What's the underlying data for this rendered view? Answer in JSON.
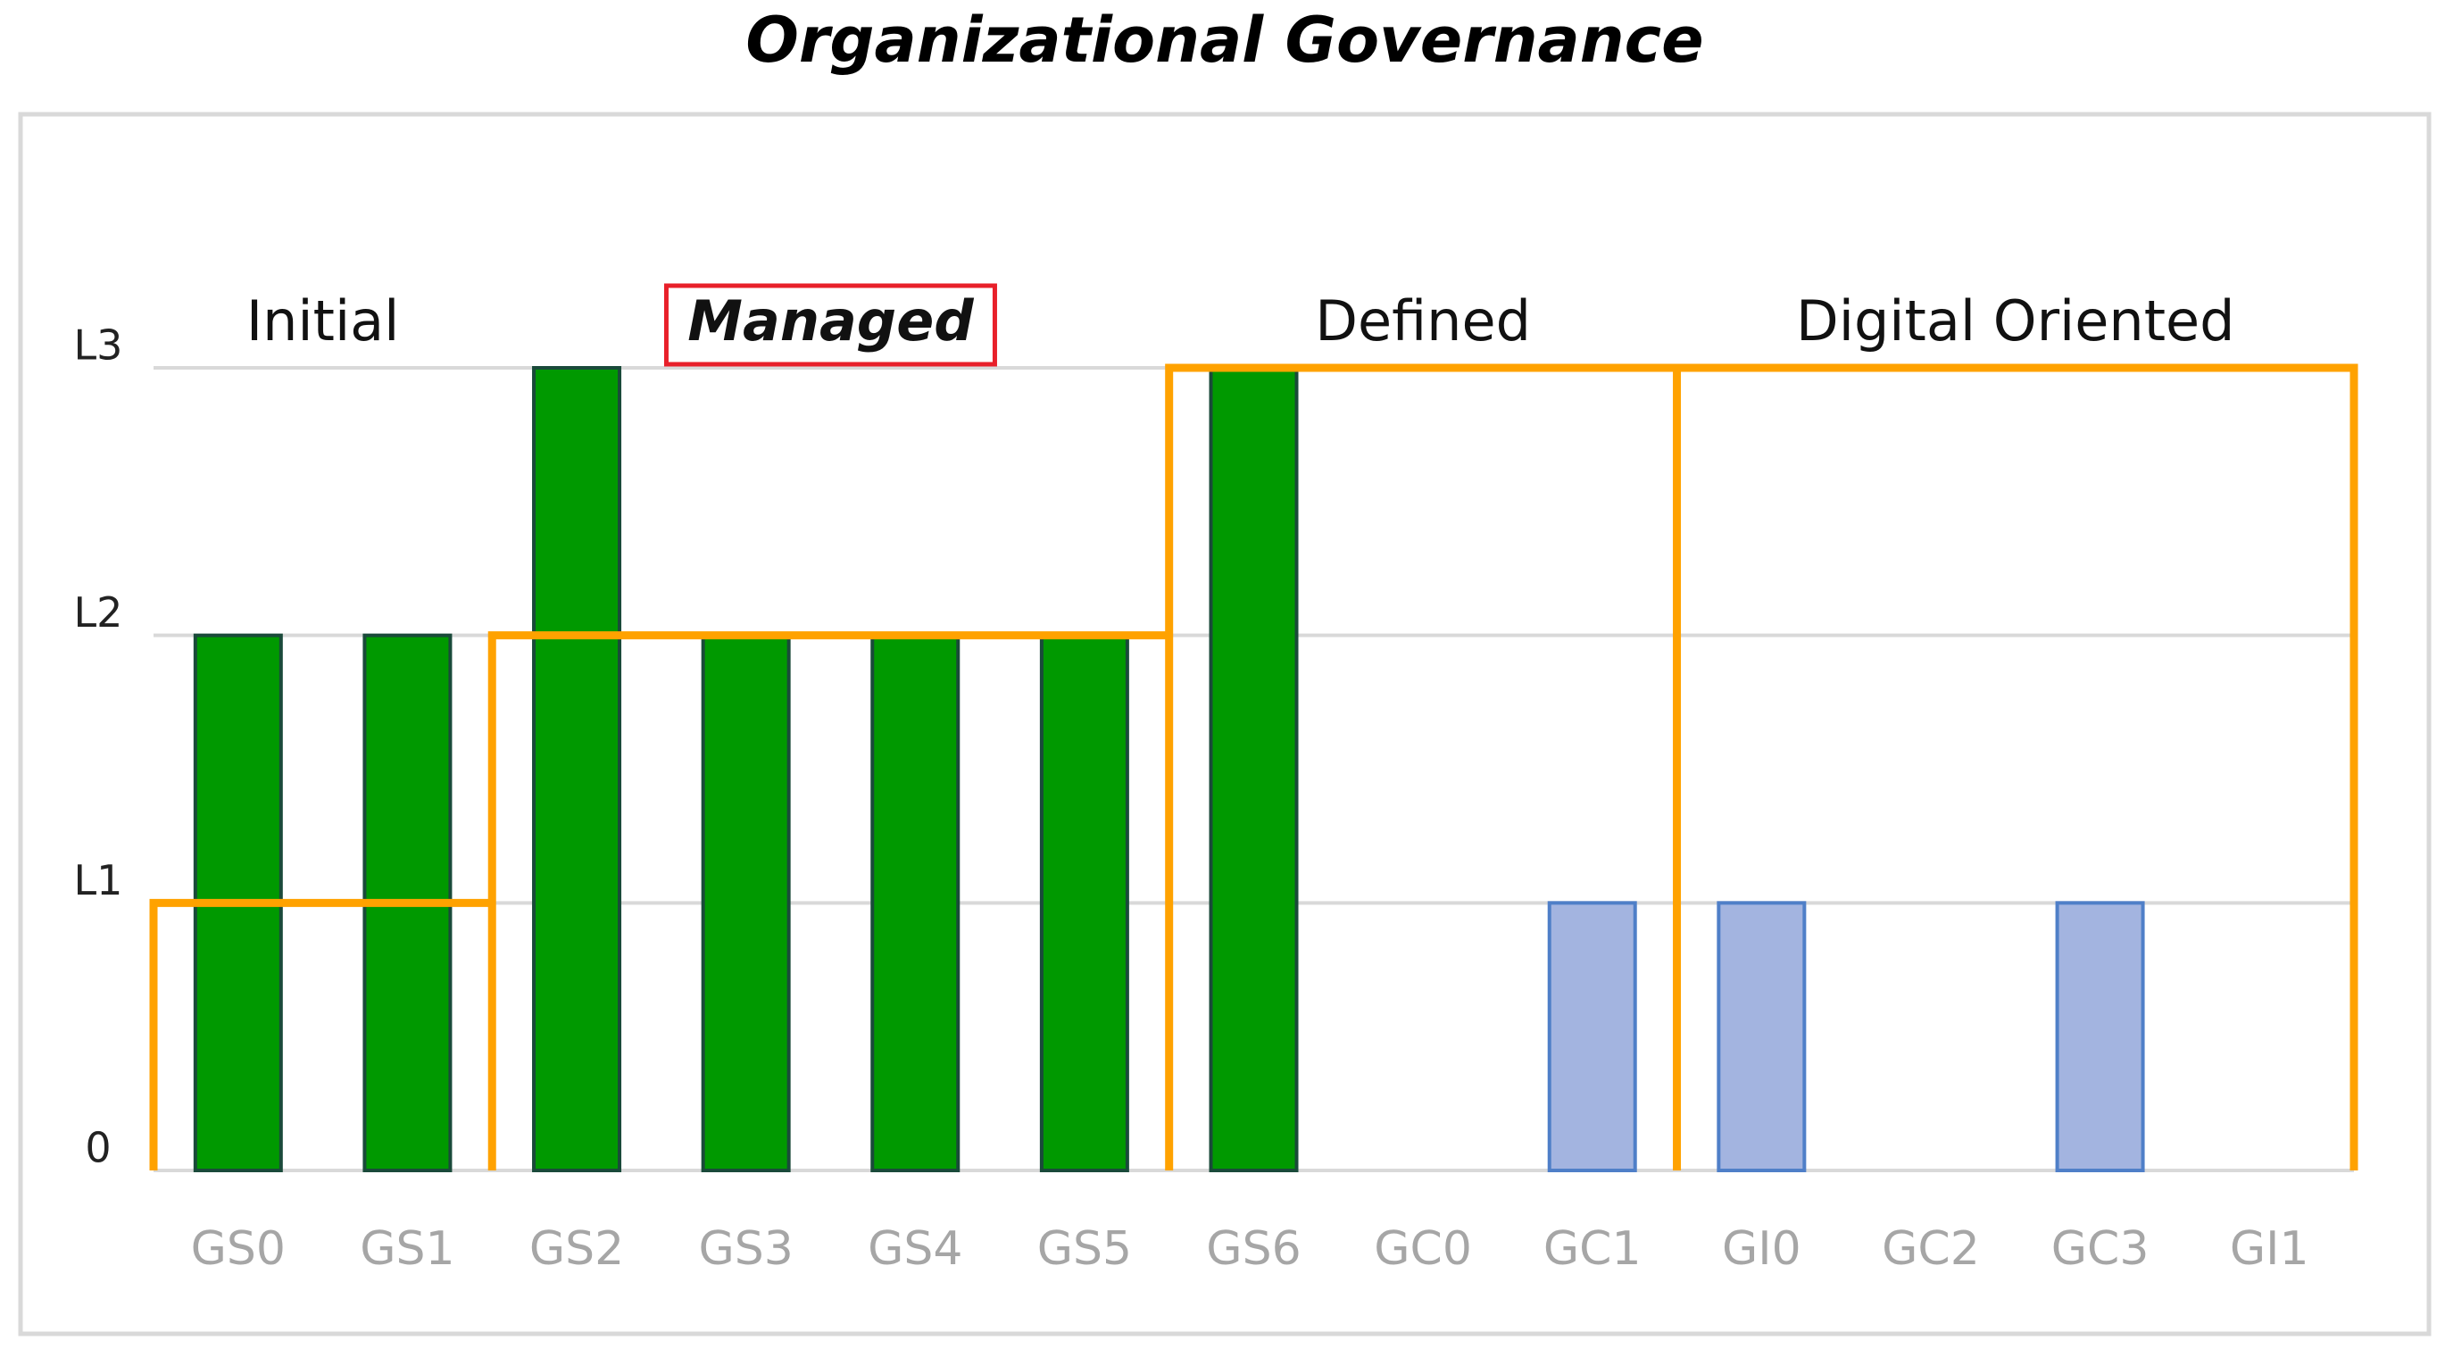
{
  "chart_data": {
    "type": "bar",
    "title": "Organizational Governance",
    "categories": [
      "GS0",
      "GS1",
      "GS2",
      "GS3",
      "GS4",
      "GS5",
      "GS6",
      "GC0",
      "GC1",
      "GI0",
      "GC2",
      "GC3",
      "GI1"
    ],
    "values": [
      2,
      2,
      3,
      2,
      2,
      2,
      3,
      0,
      1,
      1,
      0,
      1,
      0
    ],
    "colors": [
      "#009900",
      "#009900",
      "#009900",
      "#009900",
      "#009900",
      "#009900",
      "#009900",
      "#a3b4e0",
      "#a3b4e0",
      "#a3b4e0",
      "#a3b4e0",
      "#a3b4e0",
      "#a3b4e0"
    ],
    "ylim": [
      0,
      3
    ],
    "yticks": [
      0,
      {
        "value": 1,
        "label": "L1"
      },
      {
        "value": 2,
        "label": "L2"
      },
      {
        "value": 3,
        "label": "L3"
      }
    ],
    "grid": true,
    "stages": [
      {
        "label": "Initial",
        "level": 1,
        "span": 2,
        "highlighted": false
      },
      {
        "label": "Managed",
        "level": 2,
        "span": 4,
        "highlighted": true
      },
      {
        "label": "Defined",
        "level": 3,
        "span": 3,
        "highlighted": false
      },
      {
        "label": "Digital Oriented",
        "level": 3,
        "span": 4,
        "highlighted": false
      }
    ],
    "stage_color": "#ffa200"
  }
}
